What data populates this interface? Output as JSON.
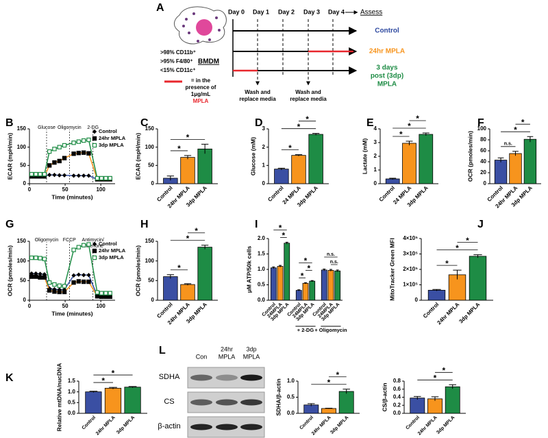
{
  "diagram": {
    "panel": "A",
    "days": [
      "Day 0",
      "Day 1",
      "Day 2",
      "Day 3",
      "Day 4"
    ],
    "assess": "Assess",
    "markers": [
      ">98% CD11b⁺",
      ">95% F4/80⁺",
      "<15% CD11c⁺"
    ],
    "cell_type": "BMDM",
    "note": [
      "= in the",
      "presence of",
      "1μg/mL"
    ],
    "note_agent": "MPLA",
    "arms": [
      {
        "label": [
          "Control"
        ],
        "color": "#2f4aa0"
      },
      {
        "label": [
          "24hr MPLA"
        ],
        "color": "#f7941d"
      },
      {
        "label": [
          "3 days",
          "post (3dp)",
          "MPLA"
        ],
        "color": "#1e8c45"
      }
    ],
    "media": [
      [
        "Wash and",
        "replace media"
      ],
      [
        "Wash and",
        "replace media"
      ]
    ]
  },
  "blot": {
    "panel": "L",
    "lanes": [
      [
        "Con"
      ],
      [
        "24hr",
        "MPLA"
      ],
      [
        "3dp",
        "MPLA"
      ]
    ],
    "proteins": [
      "SDHA",
      "CS",
      "β-actin"
    ]
  },
  "chart_data": [
    {
      "panel": "B",
      "type": "line",
      "ylabel": "ECAR (mpH/min)",
      "xlabel": "Time (minutes)",
      "x": [
        3,
        9,
        15,
        21,
        28,
        35,
        42,
        49,
        62,
        69,
        76,
        83,
        95,
        101,
        107,
        113
      ],
      "xlim": [
        0,
        120
      ],
      "xticks": [
        0,
        50,
        100
      ],
      "ylim": [
        0,
        150
      ],
      "yticks": [
        0,
        50,
        100,
        150
      ],
      "events": [
        {
          "x": 24,
          "label": [
            "Glucose"
          ]
        },
        {
          "x": 56,
          "label": [
            "Oligomycin"
          ]
        },
        {
          "x": 89,
          "label": [
            "2-DG"
          ]
        }
      ],
      "series": [
        {
          "name": "Control",
          "color": "#2f4aa0",
          "marker": "diamond",
          "marker_color": "#000",
          "values": [
            22,
            22,
            22,
            22,
            24,
            24,
            23,
            23,
            22,
            22,
            22,
            22,
            12,
            12,
            12,
            12
          ]
        },
        {
          "name": "24hr MPLA",
          "color": "#f7941d",
          "marker": "square",
          "marker_color": "#000",
          "values": [
            20,
            20,
            20,
            20,
            50,
            58,
            62,
            70,
            82,
            84,
            85,
            83,
            12,
            12,
            12,
            12
          ]
        },
        {
          "name": "3dp MPLA",
          "color": "#1e8c45",
          "marker": "open-square",
          "marker_color": "#1e8c45",
          "values": [
            26,
            26,
            26,
            26,
            88,
            95,
            100,
            105,
            112,
            115,
            118,
            120,
            15,
            15,
            15,
            15
          ]
        }
      ]
    },
    {
      "panel": "C",
      "type": "bar",
      "ylabel": "ECAR (mpH/min)",
      "categories": [
        "Control",
        "24hr MPLA",
        "3dp MPLA"
      ],
      "values": [
        15,
        72,
        95
      ],
      "errors": [
        6,
        5,
        13
      ],
      "colors": [
        "#3a4fa3",
        "#f7941d",
        "#1e8c45"
      ],
      "ylim": [
        0,
        150
      ],
      "yticks": [
        0,
        50,
        100,
        150
      ],
      "annotations": [
        {
          "from": 0,
          "to": 1,
          "label": "*"
        },
        {
          "from": 0,
          "to": 2,
          "label": "*"
        }
      ]
    },
    {
      "panel": "D",
      "type": "bar",
      "ylabel": "Glucose (mM)",
      "categories": [
        "Control",
        "24 MPLA",
        "3dp MPLA"
      ],
      "values": [
        0.8,
        1.55,
        2.7
      ],
      "errors": [
        0.05,
        0.04,
        0.05
      ],
      "colors": [
        "#3a4fa3",
        "#f7941d",
        "#1e8c45"
      ],
      "ylim": [
        0,
        3
      ],
      "yticks": [
        0,
        1,
        2,
        3
      ],
      "annotations": [
        {
          "from": 0,
          "to": 1,
          "label": "*"
        },
        {
          "from": 0,
          "to": 2,
          "label": "*"
        },
        {
          "from": 1,
          "to": 2,
          "label": "*"
        }
      ]
    },
    {
      "panel": "E",
      "type": "bar",
      "ylabel": "Lactate (mM)",
      "categories": [
        "Control",
        "24 MPLA",
        "3dp MPLA"
      ],
      "values": [
        0.35,
        2.95,
        3.6
      ],
      "errors": [
        0.05,
        0.15,
        0.1
      ],
      "colors": [
        "#3a4fa3",
        "#f7941d",
        "#1e8c45"
      ],
      "ylim": [
        0,
        4
      ],
      "yticks": [
        0,
        1,
        2,
        3,
        4
      ],
      "annotations": [
        {
          "from": 0,
          "to": 1,
          "label": "*"
        },
        {
          "from": 0,
          "to": 2,
          "label": "*"
        },
        {
          "from": 1,
          "to": 2,
          "label": "*"
        }
      ]
    },
    {
      "panel": "F",
      "type": "bar",
      "ylabel": "OCR (pmoles/min)",
      "categories": [
        "Control",
        "24hr MPLA",
        "3dp MPLA"
      ],
      "values": [
        43,
        55,
        81
      ],
      "errors": [
        4,
        4,
        5
      ],
      "colors": [
        "#3a4fa3",
        "#f7941d",
        "#1e8c45"
      ],
      "ylim": [
        0,
        100
      ],
      "yticks": [
        0,
        20,
        40,
        60,
        80,
        100
      ],
      "annotations": [
        {
          "from": 0,
          "to": 1,
          "label": "n.s."
        },
        {
          "from": 0,
          "to": 2,
          "label": "*"
        },
        {
          "from": 1,
          "to": 2,
          "label": "*"
        }
      ]
    },
    {
      "panel": "G",
      "type": "line",
      "ylabel": "OCR (pmoles/min)",
      "xlabel": "Time (minutes)",
      "x": [
        3,
        9,
        15,
        21,
        28,
        35,
        42,
        49,
        62,
        69,
        76,
        83,
        95,
        101,
        107,
        113
      ],
      "xlim": [
        0,
        120
      ],
      "xticks": [
        0,
        50,
        100
      ],
      "ylim": [
        0,
        150
      ],
      "yticks": [
        0,
        50,
        100,
        150
      ],
      "events": [
        {
          "x": 24,
          "label": [
            "Oligomycin"
          ]
        },
        {
          "x": 56,
          "label": [
            "FCCP"
          ]
        },
        {
          "x": 89,
          "label": [
            "Antimycin/",
            "Rotenone"
          ]
        }
      ],
      "series": [
        {
          "name": "Control",
          "color": "#2f4aa0",
          "marker": "diamond",
          "marker_color": "#000",
          "values": [
            68,
            68,
            67,
            66,
            30,
            28,
            27,
            27,
            63,
            65,
            64,
            64,
            12,
            11,
            11,
            11
          ]
        },
        {
          "name": "24hr MPLA",
          "color": "#f7941d",
          "marker": "square",
          "marker_color": "#000",
          "values": [
            60,
            60,
            58,
            58,
            25,
            22,
            21,
            21,
            45,
            48,
            47,
            47,
            10,
            9,
            9,
            9
          ]
        },
        {
          "name": "3dp MPLA",
          "color": "#1e8c45",
          "marker": "open-square",
          "marker_color": "#1e8c45",
          "values": [
            108,
            108,
            107,
            105,
            45,
            40,
            37,
            36,
            128,
            135,
            140,
            142,
            20,
            18,
            18,
            18
          ]
        }
      ]
    },
    {
      "panel": "H",
      "type": "bar",
      "ylabel": "OCR (pmoles/min)",
      "categories": [
        "Control",
        "24hr MPLA",
        "3dp MPLA"
      ],
      "values": [
        60,
        40,
        135
      ],
      "errors": [
        5,
        2,
        5
      ],
      "colors": [
        "#3a4fa3",
        "#f7941d",
        "#1e8c45"
      ],
      "ylim": [
        0,
        150
      ],
      "yticks": [
        0,
        50,
        100,
        150
      ],
      "annotations": [
        {
          "from": 0,
          "to": 1,
          "label": "*"
        },
        {
          "from": 0,
          "to": 2,
          "label": "*"
        },
        {
          "from": 1,
          "to": 2,
          "label": "*"
        }
      ]
    },
    {
      "panel": "I",
      "type": "bar",
      "ylabel": "μM ATP/50k cells",
      "categories": [
        "Control",
        "24MPLA",
        "3dp MPLA",
        "Control",
        "24MPLA",
        "3dp MPLA",
        "Control",
        "24MPLA",
        "3dp MPLA"
      ],
      "group_labels": [
        null,
        "+ 2-DG",
        "+ Oligomycin"
      ],
      "values": [
        1.05,
        1.1,
        1.85,
        0.32,
        0.55,
        0.62,
        0.98,
        0.97,
        0.95
      ],
      "errors": [
        0.03,
        0.03,
        0.03,
        0.02,
        0.02,
        0.02,
        0.03,
        0.03,
        0.03
      ],
      "colors": [
        "#3a4fa3",
        "#f7941d",
        "#1e8c45",
        "#3a4fa3",
        "#f7941d",
        "#1e8c45",
        "#3a4fa3",
        "#f7941d",
        "#1e8c45"
      ],
      "ylim": [
        0,
        2
      ],
      "yticks": [
        {
          "value": 0,
          "label": "0.0"
        },
        {
          "value": 0.5,
          "label": "0.5"
        },
        {
          "value": 1,
          "label": "1.0"
        },
        {
          "value": 1.5,
          "label": "1.5"
        },
        {
          "value": 2,
          "label": "2.0"
        }
      ],
      "annotations": [
        {
          "from": 1,
          "to": 2,
          "label": "*"
        },
        {
          "from": 0,
          "to": 2,
          "label": "*"
        },
        {
          "from": 3,
          "to": 4,
          "label": "*"
        },
        {
          "from": 4,
          "to": 5,
          "label": "*"
        },
        {
          "from": 3,
          "to": 5,
          "label": "*"
        },
        {
          "from": 7,
          "to": 8,
          "label": "n.s."
        },
        {
          "from": 6,
          "to": 8,
          "label": "n.s."
        }
      ]
    },
    {
      "panel": "J",
      "type": "bar",
      "ylabel": "MitoTracker Green MFI",
      "categories": [
        "Control",
        "24hr MPLA",
        "3dp MPLA"
      ],
      "values": [
        65000,
        165000,
        285000
      ],
      "errors": [
        5000,
        30000,
        10000
      ],
      "colors": [
        "#3a4fa3",
        "#f7941d",
        "#1e8c45"
      ],
      "ylim": [
        0,
        400000
      ],
      "yticks": [
        0,
        {
          "value": 100000,
          "label": "1×10⁵"
        },
        {
          "value": 200000,
          "label": "2×10⁵"
        },
        {
          "value": 300000,
          "label": "3×10⁵"
        },
        {
          "value": 400000,
          "label": "4×10⁵"
        }
      ],
      "annotations": [
        {
          "from": 0,
          "to": 1,
          "label": "*"
        },
        {
          "from": 0,
          "to": 2,
          "label": "*"
        },
        {
          "from": 1,
          "to": 2,
          "label": "*"
        }
      ]
    },
    {
      "panel": "K",
      "type": "bar",
      "ylabel": "Relative mtDNA/nucDNA",
      "categories": [
        "Control",
        "24hr MPLA",
        "3dp MPLA"
      ],
      "values": [
        1.0,
        1.17,
        1.22
      ],
      "errors": [
        0.03,
        0.04,
        0.03
      ],
      "colors": [
        "#3a4fa3",
        "#f7941d",
        "#1e8c45"
      ],
      "ylim": [
        0,
        1.5
      ],
      "yticks": [
        {
          "value": 0,
          "label": "0.0"
        },
        {
          "value": 0.5,
          "label": "0.5"
        },
        {
          "value": 1,
          "label": "1.0"
        },
        {
          "value": 1.5,
          "label": "1.5"
        }
      ],
      "annotations": [
        {
          "from": 0,
          "to": 1,
          "label": "*"
        },
        {
          "from": 0,
          "to": 2,
          "label": "*"
        }
      ]
    },
    {
      "type": "bar",
      "ylabel": "SDHA/β-actin",
      "categories": [
        "Control",
        "24hr MPLA",
        "3dp MPLA"
      ],
      "values": [
        0.26,
        0.15,
        0.68
      ],
      "errors": [
        0.04,
        0.01,
        0.07
      ],
      "colors": [
        "#3a4fa3",
        "#f7941d",
        "#1e8c45"
      ],
      "ylim": [
        0,
        1
      ],
      "yticks": [
        {
          "value": 0,
          "label": "0.0"
        },
        {
          "value": 0.5,
          "label": "0.5"
        },
        {
          "value": 1,
          "label": "1.0"
        }
      ],
      "annotations": [
        {
          "from": 0,
          "to": 2,
          "label": "*"
        },
        {
          "from": 1,
          "to": 2,
          "label": "*"
        }
      ]
    },
    {
      "type": "bar",
      "ylabel": "CS/β-actin",
      "categories": [
        "Control",
        "24hr MPLA",
        "3dp MPLA"
      ],
      "values": [
        0.38,
        0.36,
        0.66
      ],
      "errors": [
        0.04,
        0.05,
        0.05
      ],
      "colors": [
        "#3a4fa3",
        "#f7941d",
        "#1e8c45"
      ],
      "ylim": [
        0,
        0.8
      ],
      "yticks": [
        {
          "value": 0,
          "label": "0.0"
        },
        {
          "value": 0.2,
          "label": "0.2"
        },
        {
          "value": 0.4,
          "label": "0.4"
        },
        {
          "value": 0.6,
          "label": "0.6"
        },
        {
          "value": 0.8,
          "label": "0.8"
        }
      ],
      "annotations": [
        {
          "from": 0,
          "to": 2,
          "label": "*"
        },
        {
          "from": 1,
          "to": 2,
          "label": "*"
        }
      ]
    }
  ]
}
